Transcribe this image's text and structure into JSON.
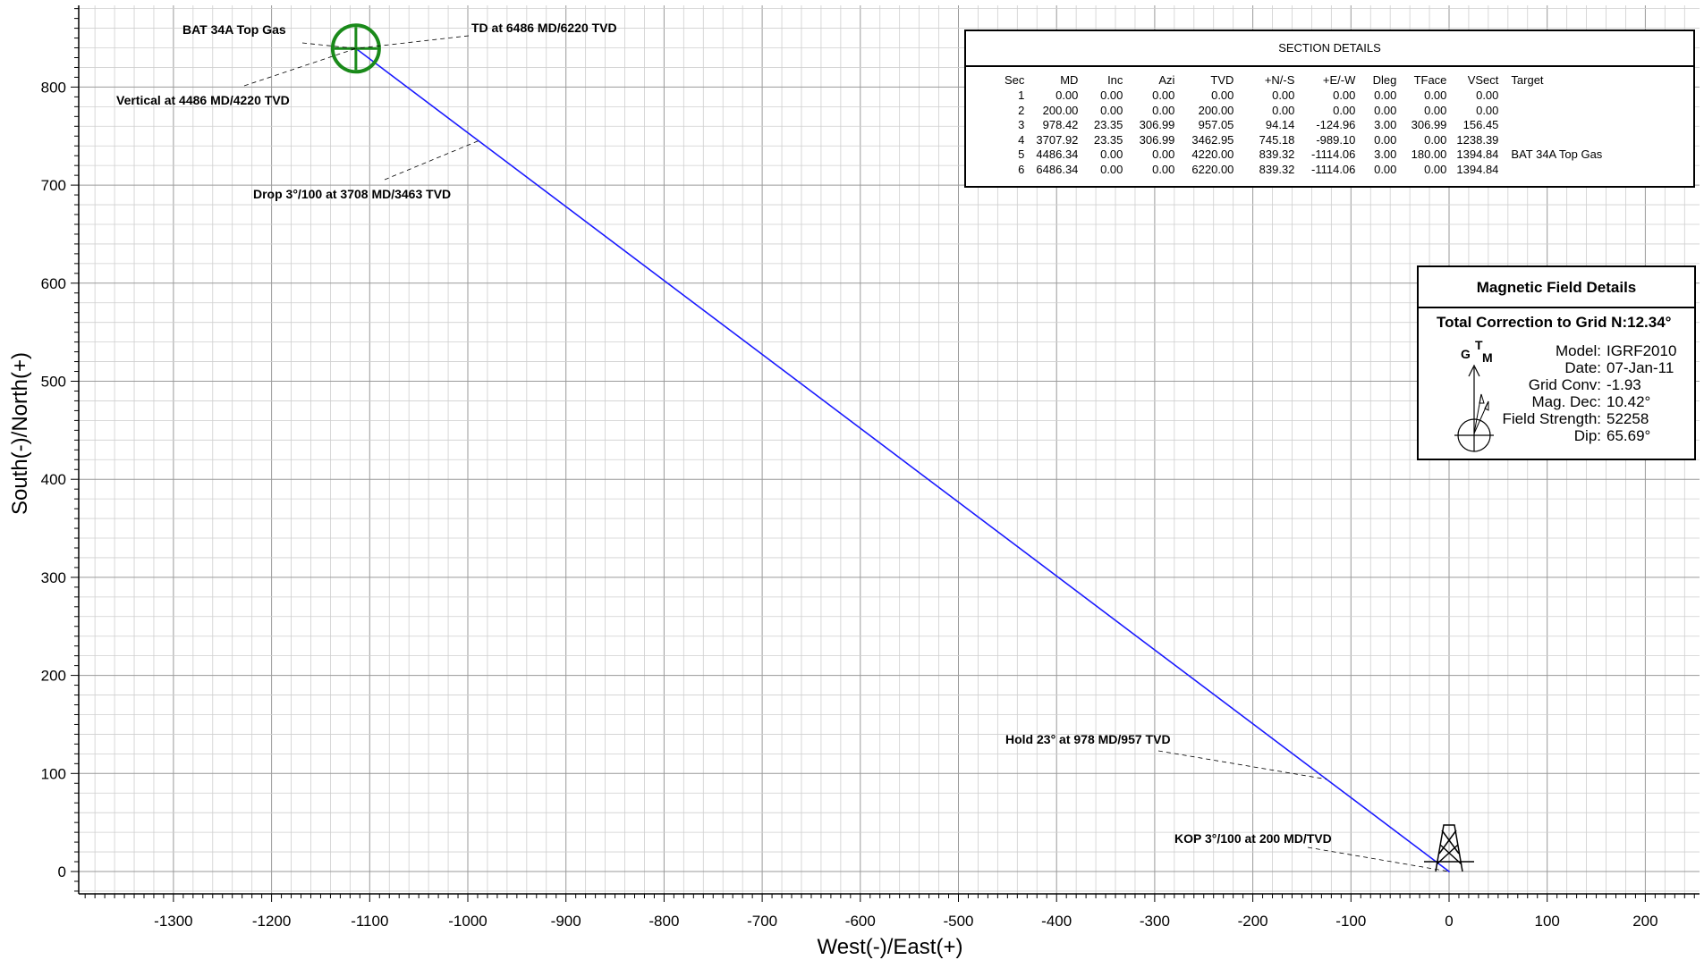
{
  "chart_data": {
    "type": "line",
    "xlabel": "West(-)/East(+)",
    "ylabel": "South(-)/North(+)",
    "xlim": [
      -1400,
      260
    ],
    "ylim": [
      -25,
      885
    ],
    "xticks": [
      -1300,
      -1200,
      -1100,
      -1000,
      -900,
      -800,
      -700,
      -600,
      -500,
      -400,
      -300,
      -200,
      -100,
      0,
      100,
      200
    ],
    "yticks": [
      0,
      100,
      200,
      300,
      400,
      500,
      600,
      700,
      800
    ],
    "grid": true,
    "series": [
      {
        "x": [
          0.0,
          0.0,
          -124.96,
          -989.1,
          -1114.06,
          -1114.06
        ],
        "y": [
          0.0,
          0.0,
          94.14,
          745.18,
          839.32,
          839.32
        ],
        "color": "#1a1aff"
      }
    ],
    "target": {
      "x": -1114.06,
      "y": 839.32,
      "color": "#1a8a1a"
    },
    "wellhead": {
      "x": 0,
      "y": 0
    },
    "annotations": [
      {
        "text": "BAT 34A Top Gas",
        "x": -1114.06,
        "y": 839.32
      },
      {
        "text": "TD at 6486 MD/6220 TVD",
        "x": -1114.06,
        "y": 839.32
      },
      {
        "text": "Vertical at 4486 MD/4220 TVD",
        "x": -1114.06,
        "y": 839.32
      },
      {
        "text": "Drop 3°/100 at 3708 MD/3463 TVD",
        "x": -989.1,
        "y": 745.18
      },
      {
        "text": "Hold 23° at 978 MD/957 TVD",
        "x": -124.96,
        "y": 94.14
      },
      {
        "text": "KOP 3°/100 at 200 MD/TVD",
        "x": 0,
        "y": 0
      }
    ]
  },
  "section_details": {
    "title": "SECTION DETAILS",
    "columns": [
      "Sec",
      "MD",
      "Inc",
      "Azi",
      "TVD",
      "+N/-S",
      "+E/-W",
      "Dleg",
      "TFace",
      "VSect",
      "Target"
    ],
    "rows": [
      [
        "1",
        "0.00",
        "0.00",
        "0.00",
        "0.00",
        "0.00",
        "0.00",
        "0.00",
        "0.00",
        "0.00",
        ""
      ],
      [
        "2",
        "200.00",
        "0.00",
        "0.00",
        "200.00",
        "0.00",
        "0.00",
        "0.00",
        "0.00",
        "0.00",
        ""
      ],
      [
        "3",
        "978.42",
        "23.35",
        "306.99",
        "957.05",
        "94.14",
        "-124.96",
        "3.00",
        "306.99",
        "156.45",
        ""
      ],
      [
        "4",
        "3707.92",
        "23.35",
        "306.99",
        "3462.95",
        "745.18",
        "-989.10",
        "0.00",
        "0.00",
        "1238.39",
        ""
      ],
      [
        "5",
        "4486.34",
        "0.00",
        "0.00",
        "4220.00",
        "839.32",
        "-1114.06",
        "3.00",
        "180.00",
        "1394.84",
        "BAT 34A Top Gas"
      ],
      [
        "6",
        "6486.34",
        "0.00",
        "0.00",
        "6220.00",
        "839.32",
        "-1114.06",
        "0.00",
        "0.00",
        "1394.84",
        ""
      ]
    ]
  },
  "magnetic": {
    "title": "Magnetic Field Details",
    "total_correction_label": "Total Correction to Grid N:",
    "total_correction_value": "12.34°",
    "compass_letters": {
      "g": "G",
      "t": "T",
      "m": "M"
    },
    "rows": [
      {
        "label": "Model:",
        "value": "IGRF2010"
      },
      {
        "label": "Date:",
        "value": "07-Jan-11"
      },
      {
        "label": "Grid Conv:",
        "value": "-1.93"
      },
      {
        "label": "Mag. Dec:",
        "value": "10.42°"
      },
      {
        "label": "Field Strength:",
        "value": "52258"
      },
      {
        "label": "Dip:",
        "value": "65.69°"
      }
    ]
  }
}
